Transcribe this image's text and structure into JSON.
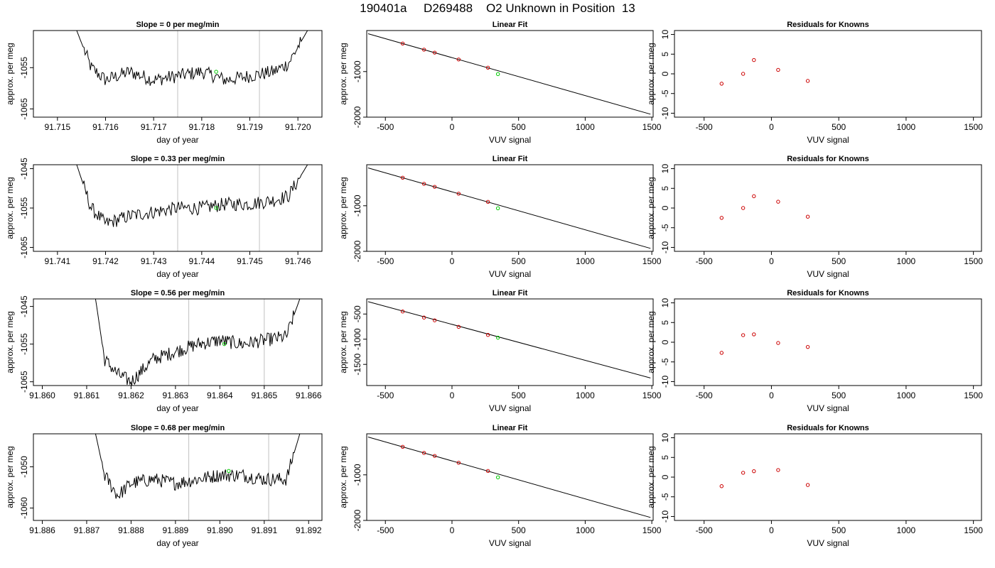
{
  "page_title": "190401a     D269488    O2 Unknown in Position  13",
  "colors": {
    "trace": "#000000",
    "known_point": "#cc0000",
    "unknown_point": "#00cc00",
    "vline": "#c0c0c0",
    "axis": "#000000"
  },
  "chart_data": [
    {
      "type": "line",
      "title": "Slope =  0  per meg/min",
      "xlabel": "day of year",
      "ylabel": "approx. per meg",
      "xlim": [
        91.7145,
        91.7205
      ],
      "ylim": [
        -1067,
        -1046
      ],
      "xticks": [
        91.715,
        91.716,
        91.717,
        91.718,
        91.719,
        91.72
      ],
      "xtick_labels": [
        "91.715",
        "91.716",
        "91.717",
        "91.718",
        "91.719",
        "91.720"
      ],
      "yticks": [
        -1055,
        -1065
      ],
      "ytick_labels": [
        "-1055",
        "-1065"
      ],
      "vlines": [
        91.7175,
        91.7192
      ],
      "x": [
        91.7154,
        91.7157,
        91.716,
        91.7165,
        91.717,
        91.7175,
        91.718,
        91.7185,
        91.719,
        91.7195,
        91.7198,
        91.7202
      ],
      "y": [
        -1046,
        -1055,
        -1058,
        -1056,
        -1058,
        -1057,
        -1056,
        -1058,
        -1057,
        -1056,
        -1054,
        -1046
      ],
      "marker": {
        "x": 91.7183,
        "y": -1056
      }
    },
    {
      "type": "scatter",
      "title": "Linear Fit",
      "xlabel": "VUV signal",
      "ylabel": "approx. per meg",
      "xlim": [
        -640,
        1510
      ],
      "ylim": [
        -2000,
        -100
      ],
      "xticks": [
        -500,
        0,
        500,
        1000,
        1500
      ],
      "xtick_labels": [
        "-500",
        "0",
        "500",
        "1000",
        "1500"
      ],
      "yticks": [
        -1000,
        -2000
      ],
      "ytick_labels": [
        "-1000",
        "-2000"
      ],
      "line": {
        "x": [
          -630,
          1490
        ],
        "y": [
          -170,
          -1935
        ]
      },
      "knowns": {
        "x": [
          -370,
          -210,
          -130,
          50,
          270
        ],
        "y": [
          -385,
          -520,
          -585,
          -735,
          -915
        ]
      },
      "unknown": {
        "x": 345,
        "y": -1055
      }
    },
    {
      "type": "scatter",
      "title": "Residuals for Knowns",
      "xlabel": "VUV signal",
      "ylabel": "approx. per meg",
      "xlim": [
        -720,
        1560
      ],
      "ylim": [
        -11,
        11
      ],
      "xticks": [
        -500,
        0,
        500,
        1000,
        1500
      ],
      "xtick_labels": [
        "-500",
        "0",
        "500",
        "1000",
        "1500"
      ],
      "yticks": [
        10,
        5,
        0,
        -5,
        -10
      ],
      "ytick_labels": [
        "10",
        "5",
        "0",
        "-5",
        "-10"
      ],
      "points": {
        "x": [
          -370,
          -210,
          -130,
          50,
          270
        ],
        "y": [
          -2.5,
          0,
          3.5,
          1,
          -1.8
        ]
      }
    },
    {
      "type": "line",
      "title": "Slope =  0.33  per meg/min",
      "xlabel": "day of year",
      "ylabel": "approx. per meg",
      "xlim": [
        91.7405,
        91.7465
      ],
      "ylim": [
        -1066,
        -1044
      ],
      "xticks": [
        91.741,
        91.742,
        91.743,
        91.744,
        91.745,
        91.746
      ],
      "xtick_labels": [
        "91.741",
        "91.742",
        "91.743",
        "91.744",
        "91.745",
        "91.746"
      ],
      "yticks": [
        -1045,
        -1055,
        -1065
      ],
      "ytick_labels": [
        "-1045",
        "-1055",
        "-1065"
      ],
      "vlines": [
        91.7435,
        91.7452
      ],
      "x": [
        91.7414,
        91.7417,
        91.742,
        91.7425,
        91.743,
        91.7435,
        91.744,
        91.7445,
        91.745,
        91.7455,
        91.7458,
        91.7462
      ],
      "y": [
        -1044,
        -1055,
        -1059,
        -1057,
        -1056,
        -1055,
        -1055,
        -1054,
        -1054,
        -1053,
        -1052,
        -1044
      ],
      "marker": {
        "x": 91.7443,
        "y": -1055
      }
    },
    {
      "type": "scatter",
      "title": "Linear Fit",
      "xlabel": "VUV signal",
      "ylabel": "approx. per meg",
      "xlim": [
        -640,
        1510
      ],
      "ylim": [
        -2000,
        -100
      ],
      "xticks": [
        -500,
        0,
        500,
        1000,
        1500
      ],
      "xtick_labels": [
        "-500",
        "0",
        "500",
        "1000",
        "1500"
      ],
      "yticks": [
        -1000,
        -2000
      ],
      "ytick_labels": [
        "-1000",
        "-2000"
      ],
      "line": {
        "x": [
          -630,
          1490
        ],
        "y": [
          -170,
          -1935
        ]
      },
      "knowns": {
        "x": [
          -370,
          -210,
          -130,
          50,
          270
        ],
        "y": [
          -385,
          -520,
          -585,
          -735,
          -915
        ]
      },
      "unknown": {
        "x": 345,
        "y": -1055
      }
    },
    {
      "type": "scatter",
      "title": "Residuals for Knowns",
      "xlabel": "VUV signal",
      "ylabel": "approx. per meg",
      "xlim": [
        -720,
        1560
      ],
      "ylim": [
        -11,
        11
      ],
      "xticks": [
        -500,
        0,
        500,
        1000,
        1500
      ],
      "xtick_labels": [
        "-500",
        "0",
        "500",
        "1000",
        "1500"
      ],
      "yticks": [
        10,
        5,
        0,
        -5,
        -10
      ],
      "ytick_labels": [
        "10",
        "5",
        "0",
        "-5",
        "-10"
      ],
      "points": {
        "x": [
          -370,
          -210,
          -130,
          50,
          270
        ],
        "y": [
          -2.5,
          0,
          3,
          1.6,
          -2.2
        ]
      }
    },
    {
      "type": "line",
      "title": "Slope =  0.56  per meg/min",
      "xlabel": "day of year",
      "ylabel": "approx. per meg",
      "xlim": [
        91.8598,
        91.8663
      ],
      "ylim": [
        -1066,
        -1043
      ],
      "xticks": [
        91.86,
        91.861,
        91.862,
        91.863,
        91.864,
        91.865,
        91.866
      ],
      "xtick_labels": [
        "91.860",
        "91.861",
        "91.862",
        "91.863",
        "91.864",
        "91.865",
        "91.866"
      ],
      "yticks": [
        -1045,
        -1055,
        -1065
      ],
      "ytick_labels": [
        "-1045",
        "-1055",
        "-1065"
      ],
      "vlines": [
        91.8633,
        91.865
      ],
      "x": [
        91.8612,
        91.8614,
        91.8617,
        91.862,
        91.8625,
        91.863,
        91.8635,
        91.864,
        91.8645,
        91.865,
        91.8655,
        91.8658
      ],
      "y": [
        -1043,
        -1059,
        -1063,
        -1065,
        -1059,
        -1057,
        -1055,
        -1054,
        -1055,
        -1054,
        -1053,
        -1043
      ],
      "marker": {
        "x": 91.8641,
        "y": -1055
      }
    },
    {
      "type": "scatter",
      "title": "Linear Fit",
      "xlabel": "VUV signal",
      "ylabel": "approx. per meg",
      "xlim": [
        -640,
        1510
      ],
      "ylim": [
        -1920,
        -200
      ],
      "xticks": [
        -500,
        0,
        500,
        1000,
        1500
      ],
      "xtick_labels": [
        "-500",
        "0",
        "500",
        "1000",
        "1500"
      ],
      "yticks": [
        -500,
        -1000,
        -1500
      ],
      "ytick_labels": [
        "-500",
        "-1000",
        "-1500"
      ],
      "line": {
        "x": [
          -630,
          1490
        ],
        "y": [
          -255,
          -1770
        ]
      },
      "knowns": {
        "x": [
          -370,
          -210,
          -130,
          50,
          270
        ],
        "y": [
          -450,
          -570,
          -625,
          -755,
          -915
        ]
      },
      "unknown": {
        "x": 345,
        "y": -970
      }
    },
    {
      "type": "scatter",
      "title": "Residuals for Knowns",
      "xlabel": "VUV signal",
      "ylabel": "approx. per meg",
      "xlim": [
        -720,
        1560
      ],
      "ylim": [
        -11,
        11
      ],
      "xticks": [
        -500,
        0,
        500,
        1000,
        1500
      ],
      "xtick_labels": [
        "-500",
        "0",
        "500",
        "1000",
        "1500"
      ],
      "yticks": [
        10,
        5,
        0,
        -5,
        -10
      ],
      "ytick_labels": [
        "10",
        "5",
        "0",
        "-5",
        "-10"
      ],
      "points": {
        "x": [
          -370,
          -210,
          -130,
          50,
          270
        ],
        "y": [
          -2.7,
          1.8,
          2,
          -0.2,
          -1.2
        ]
      }
    },
    {
      "type": "line",
      "title": "Slope =  0.68  per meg/min",
      "xlabel": "day of year",
      "ylabel": "approx. per meg",
      "xlim": [
        91.8858,
        91.8923
      ],
      "ylim": [
        -1063,
        -1042
      ],
      "xticks": [
        91.886,
        91.887,
        91.888,
        91.889,
        91.89,
        91.891,
        91.892
      ],
      "xtick_labels": [
        "91.886",
        "91.887",
        "91.888",
        "91.889",
        "91.890",
        "91.891",
        "91.892"
      ],
      "yticks": [
        -1050,
        -1060
      ],
      "ytick_labels": [
        "-1050",
        "-1060"
      ],
      "vlines": [
        91.8893,
        91.8911
      ],
      "x": [
        91.8872,
        91.8874,
        91.8877,
        91.888,
        91.8885,
        91.889,
        91.8895,
        91.89,
        91.8905,
        91.891,
        91.8915,
        91.8918
      ],
      "y": [
        -1042,
        -1052,
        -1057,
        -1054,
        -1053,
        -1054,
        -1053,
        -1052,
        -1052,
        -1053,
        -1053,
        -1042
      ],
      "marker": {
        "x": 91.8902,
        "y": -1051
      }
    },
    {
      "type": "scatter",
      "title": "Linear Fit",
      "xlabel": "VUV signal",
      "ylabel": "approx. per meg",
      "xlim": [
        -640,
        1510
      ],
      "ylim": [
        -2000,
        -100
      ],
      "xticks": [
        -500,
        0,
        500,
        1000,
        1500
      ],
      "xtick_labels": [
        "-500",
        "0",
        "500",
        "1000",
        "1500"
      ],
      "yticks": [
        -1000,
        -2000
      ],
      "ytick_labels": [
        "-1000",
        "-2000"
      ],
      "line": {
        "x": [
          -630,
          1490
        ],
        "y": [
          -170,
          -1935
        ]
      },
      "knowns": {
        "x": [
          -370,
          -210,
          -130,
          50,
          270
        ],
        "y": [
          -385,
          -520,
          -585,
          -735,
          -915
        ]
      },
      "unknown": {
        "x": 345,
        "y": -1055
      }
    },
    {
      "type": "scatter",
      "title": "Residuals for Knowns",
      "xlabel": "VUV signal",
      "ylabel": "approx. per meg",
      "xlim": [
        -720,
        1560
      ],
      "ylim": [
        -11,
        11
      ],
      "xticks": [
        -500,
        0,
        500,
        1000,
        1500
      ],
      "xtick_labels": [
        "-500",
        "0",
        "500",
        "1000",
        "1500"
      ],
      "yticks": [
        10,
        5,
        0,
        -5,
        -10
      ],
      "ytick_labels": [
        "10",
        "5",
        "0",
        "-5",
        "-10"
      ],
      "points": {
        "x": [
          -370,
          -210,
          -130,
          50,
          270
        ],
        "y": [
          -2.3,
          1.1,
          1.5,
          1.8,
          -2
        ]
      }
    }
  ]
}
